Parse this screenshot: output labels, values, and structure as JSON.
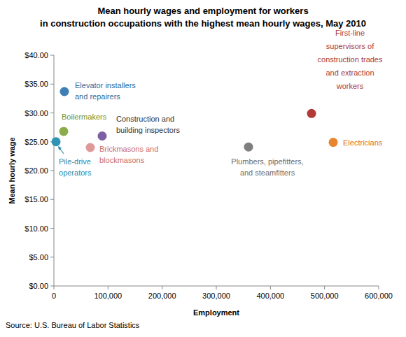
{
  "chart_data": {
    "type": "scatter",
    "title": "Mean hourly wages and employment for workers in construction occupations with the highest mean hourly wages, May 2010",
    "x_label": "Employment",
    "y_label": "Mean hourly wage",
    "source": "Source: U.S. Bureau of Labor Statistics",
    "marker": "circle",
    "grid": false,
    "xlim": [
      0,
      600000
    ],
    "xticks": [
      0,
      {
        "value": 100000,
        "label": "100,000"
      },
      {
        "value": 200000,
        "label": "200,000"
      },
      {
        "value": 300000,
        "label": "300,000"
      },
      {
        "value": 400000,
        "label": "400,000"
      },
      {
        "value": 500000,
        "label": "500,000"
      },
      {
        "value": 600000,
        "label": "600,000"
      }
    ],
    "ylim": [
      0,
      40
    ],
    "yticks": [
      {
        "value": 0,
        "label": "$0.00"
      },
      {
        "value": 5,
        "label": "$5.00"
      },
      {
        "value": 10,
        "label": "$10.00"
      },
      {
        "value": 15,
        "label": "$15.00"
      },
      {
        "value": 20,
        "label": "$20.00"
      },
      {
        "value": 25,
        "label": "$25.00"
      },
      {
        "value": 30,
        "label": "$30.00"
      },
      {
        "value": 35,
        "label": "$35.00"
      },
      {
        "value": 40,
        "label": "$40.00"
      }
    ],
    "series": [
      {
        "name": "Elevator installers and repairers",
        "color": "#3f7fb5",
        "x": [
          19400
        ],
        "values": [
          33.7
        ]
      },
      {
        "name": "Boilermakers",
        "color": "#8aac4a",
        "x": [
          18100
        ],
        "values": [
          26.8
        ]
      },
      {
        "name": "Pile-drive operators",
        "color": "#2f93b3",
        "x": [
          3900
        ],
        "values": [
          25.0
        ]
      },
      {
        "name": "Construction and building inspectors",
        "color": "#7e5fa3",
        "x": [
          89200
        ],
        "values": [
          26.0
        ]
      },
      {
        "name": "Brickmasons and blockmasons",
        "color": "#de9a98",
        "x": [
          67200
        ],
        "values": [
          24.0
        ]
      },
      {
        "name": "Plumbers, pipefitters, and steamfitters",
        "color": "#7f7f7f",
        "x": [
          359500
        ],
        "values": [
          24.1
        ]
      },
      {
        "name": "First-line supervisors of construction trades and extraction workers",
        "color": "#b23b38",
        "x": [
          475900
        ],
        "values": [
          29.9
        ]
      },
      {
        "name": "Electricians",
        "color": "#e8852e",
        "x": [
          516000
        ],
        "values": [
          24.9
        ]
      }
    ]
  }
}
